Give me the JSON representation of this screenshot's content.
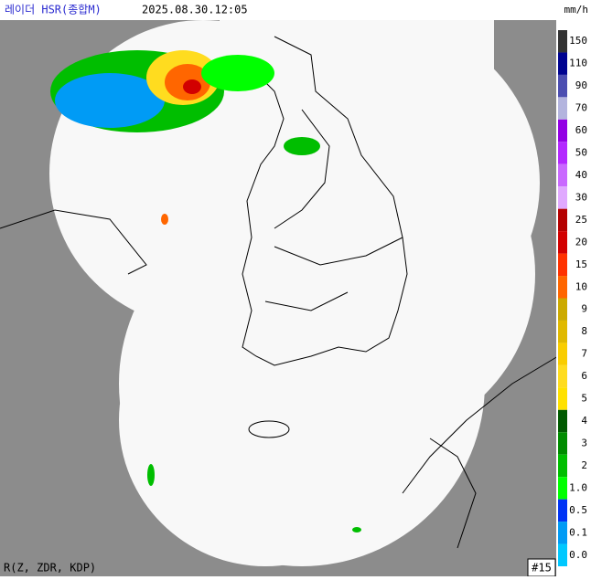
{
  "header": {
    "title": "레이더 HSR(종합M)",
    "time": "2025.08.30.12:05",
    "unit": "mm/h"
  },
  "legend": [
    {
      "label": "150",
      "color": "#333333"
    },
    {
      "label": "110",
      "color": "#000390"
    },
    {
      "label": "90",
      "color": "#4c4eb1"
    },
    {
      "label": "70",
      "color": "#b3b4de"
    },
    {
      "label": "60",
      "color": "#9300e4"
    },
    {
      "label": "50",
      "color": "#b329ff"
    },
    {
      "label": "40",
      "color": "#c969ff"
    },
    {
      "label": "30",
      "color": "#e0a9ff"
    },
    {
      "label": "25",
      "color": "#b40000"
    },
    {
      "label": "20",
      "color": "#d20000"
    },
    {
      "label": "15",
      "color": "#ff3200"
    },
    {
      "label": "10",
      "color": "#ff6600"
    },
    {
      "label": "9",
      "color": "#ccaa00"
    },
    {
      "label": "8",
      "color": "#e0b900"
    },
    {
      "label": "7",
      "color": "#f9cd00"
    },
    {
      "label": "6",
      "color": "#ffdc1f"
    },
    {
      "label": "5",
      "color": "#ffe100"
    },
    {
      "label": "4",
      "color": "#005a00"
    },
    {
      "label": "3",
      "color": "#008c00"
    },
    {
      "label": "2",
      "color": "#00be00"
    },
    {
      "label": "1.0",
      "color": "#00ff00"
    },
    {
      "label": "0.5",
      "color": "#0033f5"
    },
    {
      "label": "0.1",
      "color": "#009bf5"
    },
    {
      "label": "0.0",
      "color": "#00c8ff"
    }
  ],
  "footer": {
    "method": "R(Z, ZDR, KDP)",
    "site": "#15"
  }
}
